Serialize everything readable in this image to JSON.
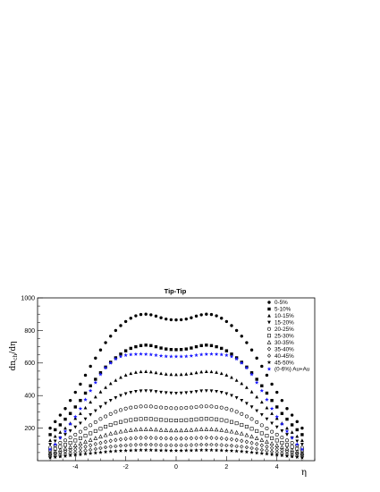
{
  "chart_data": {
    "type": "scatter",
    "title": "Tip-Tip",
    "xlabel": "η",
    "ylabel": "dn",
    "ylabel_sub": "ch",
    "ylabel_tail": "/dη",
    "xlim": [
      -5.5,
      5.5
    ],
    "ylim": [
      0,
      1000
    ],
    "x_ticks": [
      -4,
      -2,
      0,
      2,
      4
    ],
    "y_ticks": [
      200,
      400,
      600,
      800,
      1000
    ],
    "grid": false,
    "legend_position": "top-right",
    "eta": [
      -5.0,
      -4.8,
      -4.6,
      -4.4,
      -4.2,
      -4.0,
      -3.8,
      -3.6,
      -3.4,
      -3.2,
      -3.0,
      -2.8,
      -2.6,
      -2.4,
      -2.2,
      -2.0,
      -1.8,
      -1.6,
      -1.4,
      -1.2,
      -1.0,
      -0.8,
      -0.6,
      -0.4,
      -0.2,
      0.0,
      0.2,
      0.4,
      0.6,
      0.8,
      1.0,
      1.2,
      1.4,
      1.6,
      1.8,
      2.0,
      2.2,
      2.4,
      2.6,
      2.8,
      3.0,
      3.2,
      3.4,
      3.6,
      3.8,
      4.0,
      4.2,
      4.4,
      4.6,
      4.8,
      5.0
    ],
    "series": [
      {
        "name": "0-5%",
        "marker": "circle-filled",
        "color": "#000000",
        "values": [
          200,
          240,
          280,
          320,
          370,
          420,
          470,
          525,
          580,
          630,
          680,
          725,
          765,
          800,
          830,
          855,
          875,
          890,
          898,
          900,
          896,
          888,
          878,
          870,
          866,
          865,
          866,
          870,
          878,
          888,
          896,
          900,
          898,
          890,
          875,
          855,
          830,
          800,
          765,
          725,
          680,
          630,
          580,
          525,
          470,
          420,
          370,
          320,
          280,
          240,
          200
        ]
      },
      {
        "name": "5-10%",
        "marker": "square-filled",
        "color": "#000000",
        "values": [
          160,
          190,
          220,
          255,
          290,
          330,
          370,
          415,
          460,
          500,
          540,
          575,
          605,
          632,
          655,
          675,
          690,
          700,
          707,
          710,
          707,
          700,
          692,
          686,
          683,
          682,
          683,
          686,
          692,
          700,
          707,
          710,
          707,
          700,
          690,
          675,
          655,
          632,
          605,
          575,
          540,
          500,
          460,
          415,
          370,
          330,
          290,
          255,
          220,
          190,
          160
        ]
      },
      {
        "name": "10-15%",
        "marker": "triangle-up-filled",
        "color": "#000000",
        "values": [
          125,
          150,
          175,
          200,
          230,
          260,
          290,
          325,
          360,
          392,
          423,
          450,
          474,
          494,
          512,
          526,
          536,
          543,
          547,
          548,
          546,
          541,
          536,
          532,
          530,
          529,
          530,
          532,
          536,
          541,
          546,
          548,
          547,
          543,
          536,
          526,
          512,
          494,
          474,
          450,
          423,
          392,
          360,
          325,
          290,
          260,
          230,
          200,
          175,
          150,
          125
        ]
      },
      {
        "name": "15-20%",
        "marker": "triangle-down-filled",
        "color": "#000000",
        "values": [
          100,
          120,
          140,
          160,
          183,
          206,
          230,
          256,
          282,
          306,
          330,
          351,
          370,
          386,
          400,
          411,
          419,
          425,
          428,
          429,
          428,
          424,
          420,
          417,
          415,
          414,
          415,
          417,
          420,
          424,
          428,
          429,
          428,
          425,
          419,
          411,
          400,
          386,
          370,
          351,
          330,
          306,
          282,
          256,
          230,
          206,
          183,
          160,
          140,
          120,
          100
        ]
      },
      {
        "name": "20-25%",
        "marker": "circle-open",
        "color": "#000000",
        "values": [
          80,
          95,
          110,
          125,
          142,
          160,
          178,
          198,
          218,
          237,
          256,
          272,
          287,
          300,
          311,
          320,
          326,
          330,
          333,
          334,
          333,
          330,
          327,
          325,
          323,
          322,
          323,
          325,
          327,
          330,
          333,
          334,
          333,
          330,
          326,
          320,
          311,
          300,
          287,
          272,
          256,
          237,
          218,
          198,
          178,
          160,
          142,
          125,
          110,
          95,
          80
        ]
      },
      {
        "name": "25-30%",
        "marker": "square-open",
        "color": "#000000",
        "values": [
          62,
          73,
          85,
          97,
          110,
          124,
          138,
          153,
          168,
          182,
          196,
          209,
          220,
          230,
          238,
          245,
          250,
          254,
          256,
          257,
          256,
          254,
          251,
          249,
          248,
          247,
          248,
          249,
          251,
          254,
          256,
          257,
          256,
          254,
          250,
          245,
          238,
          230,
          220,
          209,
          196,
          182,
          168,
          153,
          138,
          124,
          110,
          97,
          85,
          73,
          62
        ]
      },
      {
        "name": "30-35%",
        "marker": "triangle-up-open",
        "color": "#000000",
        "values": [
          48,
          56,
          65,
          74,
          84,
          94,
          105,
          116,
          127,
          138,
          148,
          157,
          166,
          173,
          179,
          184,
          188,
          191,
          193,
          193,
          193,
          191,
          189,
          187,
          186,
          186,
          186,
          187,
          189,
          191,
          193,
          193,
          193,
          191,
          188,
          184,
          179,
          173,
          166,
          157,
          148,
          138,
          127,
          116,
          105,
          94,
          84,
          74,
          65,
          56,
          48
        ]
      },
      {
        "name": "35-40%",
        "marker": "diamond-open",
        "color": "#000000",
        "values": [
          37,
          43,
          49,
          56,
          63,
          70,
          78,
          86,
          94,
          102,
          109,
          116,
          122,
          127,
          131,
          134,
          137,
          139,
          140,
          141,
          140,
          139,
          138,
          137,
          136,
          135,
          136,
          137,
          138,
          139,
          140,
          141,
          140,
          139,
          137,
          134,
          131,
          127,
          122,
          116,
          109,
          102,
          94,
          86,
          78,
          70,
          63,
          56,
          49,
          43,
          37
        ]
      },
      {
        "name": "40-45%",
        "marker": "cross-open",
        "color": "#000000",
        "values": [
          27,
          31,
          36,
          41,
          46,
          51,
          56,
          62,
          67,
          72,
          77,
          82,
          86,
          89,
          92,
          94,
          96,
          97,
          98,
          98,
          98,
          97,
          96,
          95,
          95,
          95,
          95,
          95,
          96,
          97,
          98,
          98,
          98,
          97,
          96,
          94,
          92,
          89,
          86,
          82,
          77,
          72,
          67,
          62,
          56,
          51,
          46,
          41,
          36,
          31,
          27
        ]
      },
      {
        "name": "45-50%",
        "marker": "star-filled",
        "color": "#000000",
        "values": [
          19,
          22,
          25,
          28,
          32,
          35,
          38,
          42,
          45,
          48,
          51,
          54,
          57,
          59,
          61,
          62,
          63,
          64,
          65,
          65,
          65,
          64,
          63,
          63,
          62,
          62,
          62,
          63,
          63,
          64,
          65,
          65,
          65,
          64,
          63,
          62,
          61,
          59,
          57,
          54,
          51,
          48,
          45,
          42,
          38,
          35,
          32,
          28,
          25,
          22,
          19
        ]
      },
      {
        "name": "(0-6%) Au+Au",
        "marker": "star-filled",
        "color": "#1a1aff",
        "values": [
          70,
          100,
          140,
          180,
          225,
          270,
          320,
          375,
          430,
          480,
          530,
          570,
          600,
          625,
          640,
          648,
          652,
          654,
          655,
          654,
          652,
          648,
          644,
          641,
          640,
          640,
          640,
          641,
          644,
          648,
          652,
          654,
          655,
          654,
          652,
          648,
          640,
          625,
          600,
          570,
          530,
          480,
          430,
          375,
          320,
          270,
          225,
          180,
          140,
          100,
          70
        ]
      }
    ]
  }
}
